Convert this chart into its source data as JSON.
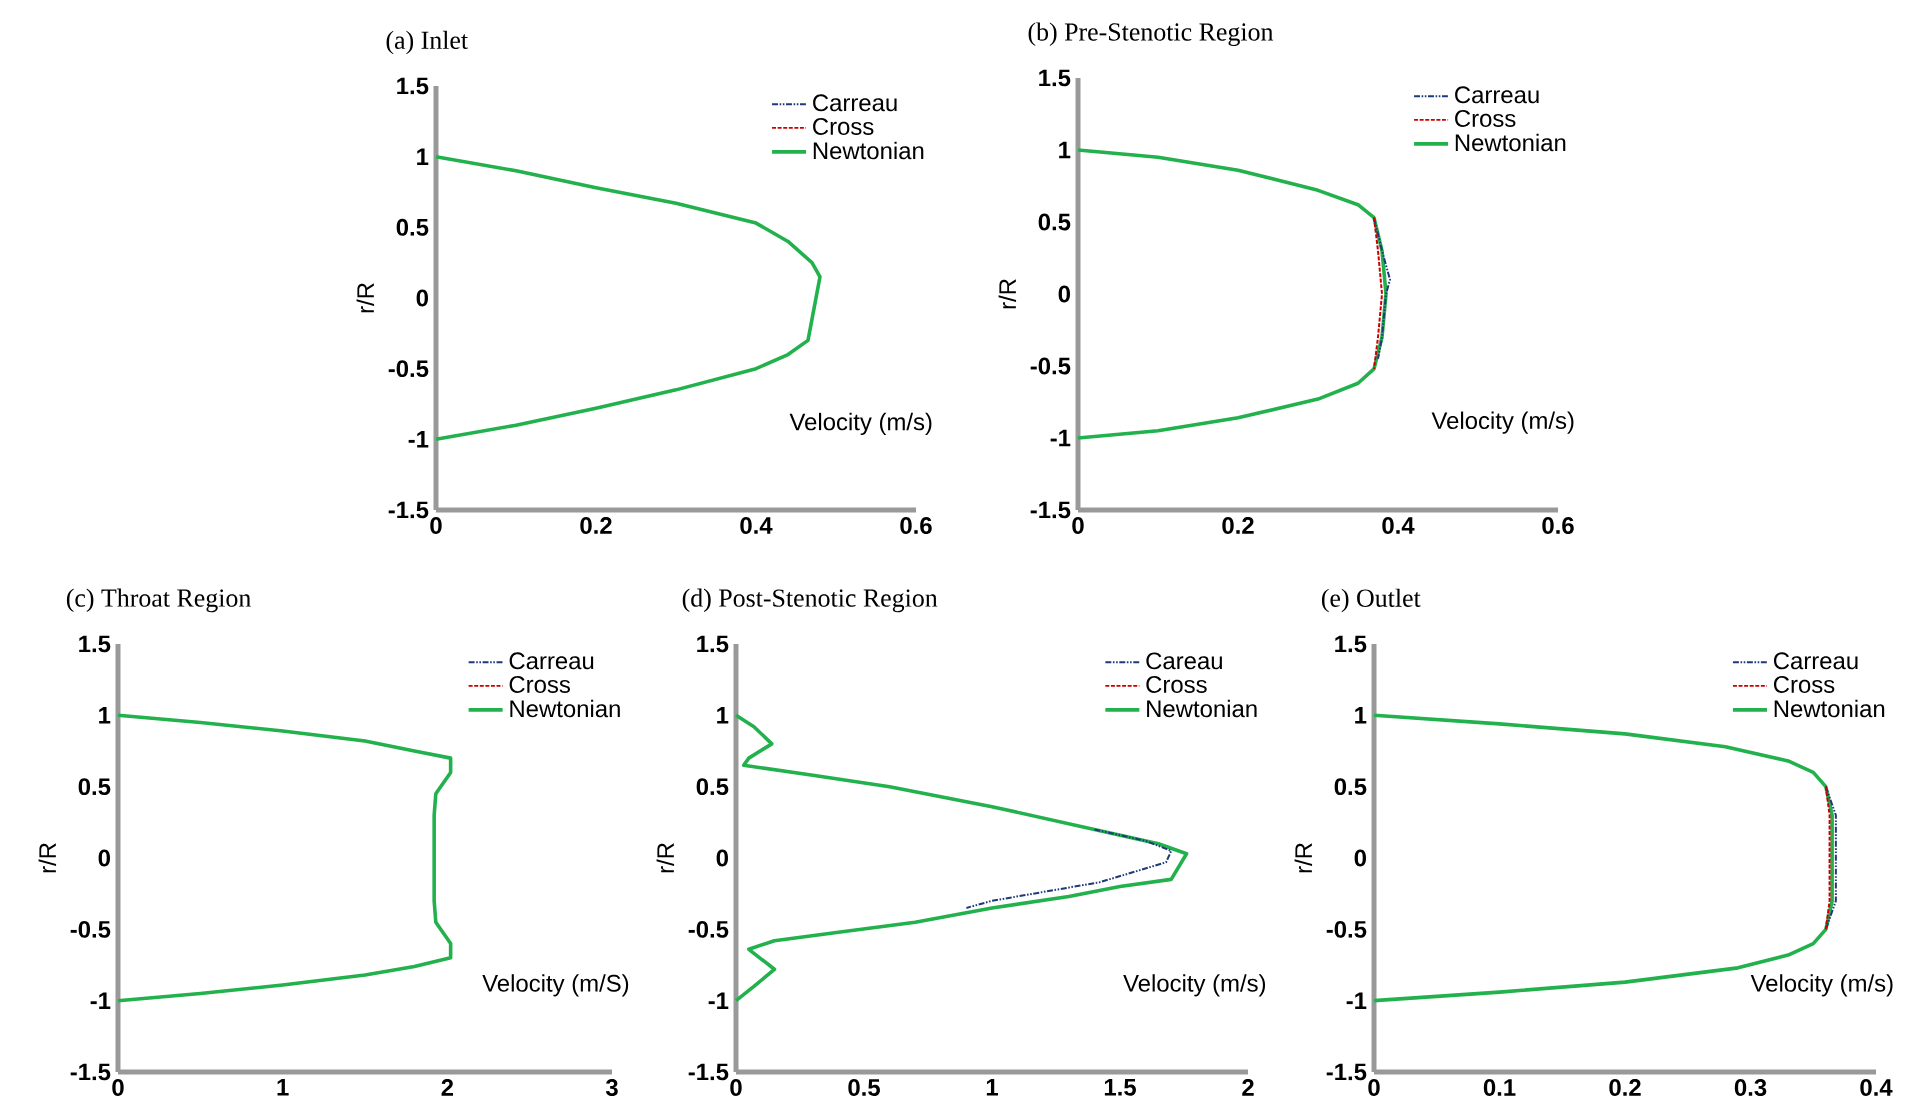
{
  "chart_data": [
    {
      "type": "line",
      "title": "(a) Inlet",
      "xlabel": "Velocity (m/s)",
      "ylabel": "r/R",
      "xlim": [
        0,
        0.6
      ],
      "ylim": [
        -1.5,
        1.5
      ],
      "xticks": [
        0,
        0.2,
        0.4,
        0.6
      ],
      "yticks": [
        -1.5,
        -1,
        -0.5,
        0,
        0.5,
        1,
        1.5
      ],
      "grid": false,
      "legend": "top right",
      "marker": "none",
      "series": [
        {
          "name": "Carreau",
          "color": "#1f3a7a",
          "line_style": "dashdot"
        },
        {
          "name": "Cross",
          "color": "#cc0000",
          "line_style": "dashed"
        },
        {
          "name": "Newtonian",
          "color": "#22b14c",
          "line_style": "solid",
          "x": [
            0,
            0.1,
            0.2,
            0.3,
            0.4,
            0.44,
            0.47,
            0.48,
            0.475,
            0.47,
            0.465,
            0.44,
            0.4,
            0.3,
            0.2,
            0.1,
            0
          ],
          "values": [
            1,
            0.9,
            0.78,
            0.67,
            0.53,
            0.4,
            0.25,
            0.15,
            0,
            -0.15,
            -0.3,
            -0.4,
            -0.5,
            -0.65,
            -0.78,
            -0.9,
            -1
          ]
        }
      ]
    },
    {
      "type": "line",
      "title": "(b) Pre-Stenotic Region",
      "xlabel": "Velocity (m/s)",
      "ylabel": "r/R",
      "xlim": [
        0,
        0.6
      ],
      "ylim": [
        -1.5,
        1.5
      ],
      "xticks": [
        0,
        0.2,
        0.4,
        0.6
      ],
      "yticks": [
        -1.5,
        -1,
        -0.5,
        0,
        0.5,
        1,
        1.5
      ],
      "grid": false,
      "legend": "top right",
      "marker": "none",
      "series": [
        {
          "name": "Carreau",
          "color": "#1f3a7a",
          "line_style": "dashdot",
          "x": [
            0.37,
            0.38,
            0.39,
            0.385,
            0.38,
            0.375
          ],
          "values": [
            0.53,
            0.3,
            0.1,
            0,
            -0.3,
            -0.45
          ]
        },
        {
          "name": "Cross",
          "color": "#cc0000",
          "line_style": "dashed",
          "x": [
            0.37,
            0.375,
            0.38,
            0.375,
            0.37
          ],
          "values": [
            0.53,
            0.3,
            0,
            -0.3,
            -0.52
          ]
        },
        {
          "name": "Newtonian",
          "color": "#22b14c",
          "line_style": "solid",
          "x": [
            0,
            0.1,
            0.2,
            0.3,
            0.35,
            0.37,
            0.38,
            0.385,
            0.38,
            0.37,
            0.35,
            0.3,
            0.2,
            0.1,
            0
          ],
          "values": [
            1,
            0.95,
            0.86,
            0.72,
            0.62,
            0.53,
            0.3,
            0,
            -0.3,
            -0.52,
            -0.62,
            -0.73,
            -0.86,
            -0.95,
            -1
          ]
        }
      ]
    },
    {
      "type": "line",
      "title": "(c)  Throat Region",
      "xlabel": "Velocity (m/S)",
      "ylabel": "r/R",
      "xlim": [
        0,
        3
      ],
      "ylim": [
        -1.5,
        1.5
      ],
      "xticks": [
        0,
        1,
        2,
        3
      ],
      "yticks": [
        -1.5,
        -1,
        -0.5,
        0,
        0.5,
        1,
        1.5
      ],
      "grid": false,
      "legend": "top right",
      "marker": "none",
      "series": [
        {
          "name": "Carreau",
          "color": "#1f3a7a",
          "line_style": "dashdot"
        },
        {
          "name": "Cross",
          "color": "#cc0000",
          "line_style": "dashed"
        },
        {
          "name": "Newtonian",
          "color": "#22b14c",
          "line_style": "solid",
          "x": [
            0,
            0.5,
            1,
            1.5,
            1.8,
            2.02,
            2.02,
            1.93,
            1.92,
            1.92,
            1.93,
            2.02,
            2.02,
            1.8,
            1.5,
            1,
            0.5,
            0
          ],
          "values": [
            1,
            0.95,
            0.89,
            0.82,
            0.75,
            0.7,
            0.6,
            0.45,
            0.3,
            -0.3,
            -0.45,
            -0.6,
            -0.7,
            -0.76,
            -0.82,
            -0.89,
            -0.95,
            -1
          ]
        }
      ]
    },
    {
      "type": "line",
      "title": "(d) Post-Stenotic Region",
      "xlabel": "Velocity (m/s)",
      "ylabel": "r/R",
      "xlim": [
        0,
        2
      ],
      "ylim": [
        -1.5,
        1.5
      ],
      "xticks": [
        0,
        0.5,
        1,
        1.5,
        2
      ],
      "yticks": [
        -1.5,
        -1,
        -0.5,
        0,
        0.5,
        1,
        1.5
      ],
      "grid": false,
      "legend": "top right",
      "marker": "none",
      "series": [
        {
          "name": "Careau",
          "color": "#1f3a7a",
          "line_style": "dashdot",
          "x": [
            1.4,
            1.6,
            1.7,
            1.68,
            1.42,
            1,
            0.9
          ],
          "values": [
            0.2,
            0.12,
            0.05,
            -0.03,
            -0.17,
            -0.3,
            -0.35
          ]
        },
        {
          "name": "Cross",
          "color": "#cc0000",
          "line_style": "dashed"
        },
        {
          "name": "Newtonian",
          "color": "#22b14c",
          "line_style": "solid",
          "x": [
            0,
            0.07,
            0.14,
            0.05,
            0.03,
            0.3,
            0.6,
            1,
            1.4,
            1.65,
            1.76,
            1.7,
            1.5,
            1.3,
            1,
            0.7,
            0.4,
            0.15,
            0.05,
            0.15,
            0.07,
            0
          ],
          "values": [
            1,
            0.92,
            0.8,
            0.7,
            0.65,
            0.58,
            0.5,
            0.36,
            0.2,
            0.1,
            0.03,
            -0.15,
            -0.2,
            -0.27,
            -0.35,
            -0.45,
            -0.52,
            -0.58,
            -0.64,
            -0.78,
            -0.9,
            -1
          ]
        }
      ]
    },
    {
      "type": "line",
      "title": "(e) Outlet",
      "xlabel": "Velocity (m/s)",
      "ylabel": "r/R",
      "xlim": [
        0,
        0.4
      ],
      "ylim": [
        -1.5,
        1.5
      ],
      "xticks": [
        0,
        0.1,
        0.2,
        0.3,
        0.4
      ],
      "yticks": [
        -1.5,
        -1,
        -0.5,
        0,
        0.5,
        1,
        1.5
      ],
      "grid": false,
      "legend": "top right",
      "marker": "none",
      "series": [
        {
          "name": "Carreau",
          "color": "#1f3a7a",
          "line_style": "dashdot",
          "x": [
            0.36,
            0.368,
            0.368,
            0.36
          ],
          "values": [
            0.5,
            0.3,
            -0.3,
            -0.5
          ]
        },
        {
          "name": "Cross",
          "color": "#cc0000",
          "line_style": "dashed",
          "x": [
            0.36,
            0.363,
            0.363,
            0.36
          ],
          "values": [
            0.5,
            0.3,
            -0.3,
            -0.5
          ]
        },
        {
          "name": "Newtonian",
          "color": "#22b14c",
          "line_style": "solid",
          "x": [
            0,
            0.1,
            0.2,
            0.28,
            0.33,
            0.35,
            0.36,
            0.365,
            0.365,
            0.36,
            0.35,
            0.33,
            0.29,
            0.2,
            0.1,
            0
          ],
          "values": [
            1,
            0.94,
            0.87,
            0.78,
            0.68,
            0.6,
            0.5,
            0.3,
            -0.3,
            -0.5,
            -0.6,
            -0.68,
            -0.77,
            -0.87,
            -0.94,
            -1
          ]
        }
      ]
    }
  ]
}
